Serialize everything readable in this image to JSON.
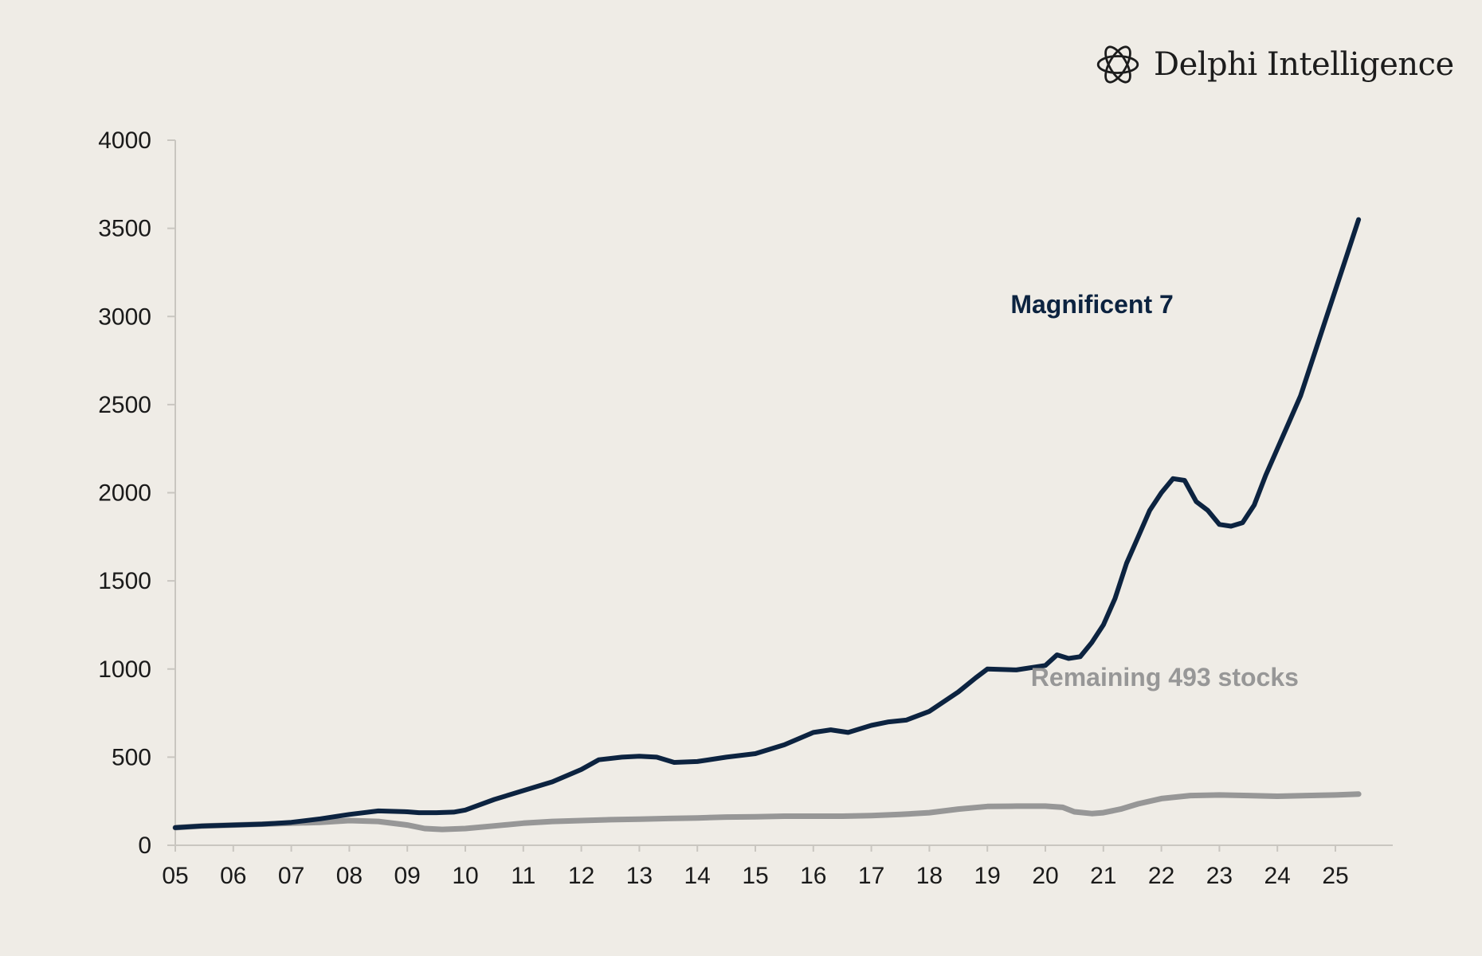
{
  "brand": {
    "name": "Delphi Intelligence",
    "logo_icon": "knot-logo-icon"
  },
  "chart_data": {
    "type": "line",
    "title": "",
    "xlabel": "",
    "ylabel": "",
    "xlim": [
      5,
      25.5
    ],
    "ylim": [
      0,
      4000
    ],
    "x_ticks": [
      "05",
      "06",
      "07",
      "08",
      "09",
      "10",
      "11",
      "12",
      "13",
      "14",
      "15",
      "16",
      "17",
      "18",
      "19",
      "20",
      "21",
      "22",
      "23",
      "24",
      "25"
    ],
    "y_ticks": [
      "4000",
      "3500",
      "3000",
      "2500",
      "2000",
      "1500",
      "1000",
      "500",
      "0"
    ],
    "grid": false,
    "legend": "inline labels",
    "series": [
      {
        "name": "Magnificent 7",
        "color": "#0c2340",
        "x": [
          5.0,
          5.5,
          6.0,
          6.5,
          7.0,
          7.5,
          8.0,
          8.5,
          9.0,
          9.2,
          9.5,
          9.8,
          10.0,
          10.5,
          11.0,
          11.5,
          12.0,
          12.3,
          12.7,
          13.0,
          13.3,
          13.6,
          14.0,
          14.5,
          15.0,
          15.5,
          16.0,
          16.3,
          16.6,
          17.0,
          17.3,
          17.6,
          18.0,
          18.5,
          18.8,
          19.0,
          19.5,
          20.0,
          20.2,
          20.4,
          20.6,
          20.8,
          21.0,
          21.2,
          21.4,
          21.6,
          21.8,
          22.0,
          22.2,
          22.4,
          22.6,
          22.8,
          23.0,
          23.2,
          23.4,
          23.6,
          23.8,
          24.0,
          24.2,
          24.4,
          24.6,
          24.8,
          25.0,
          25.2,
          25.4
        ],
        "values": [
          100,
          110,
          115,
          120,
          130,
          150,
          175,
          195,
          190,
          185,
          185,
          188,
          200,
          260,
          310,
          360,
          430,
          485,
          500,
          505,
          500,
          470,
          475,
          500,
          520,
          570,
          640,
          655,
          640,
          680,
          700,
          710,
          760,
          870,
          950,
          1000,
          995,
          1020,
          1080,
          1060,
          1070,
          1150,
          1250,
          1400,
          1600,
          1750,
          1900,
          2000,
          2080,
          2070,
          1950,
          1900,
          1820,
          1810,
          1830,
          1930,
          2100,
          2250,
          2400,
          2550,
          2750,
          2950,
          3150,
          3350,
          3550
        ]
      },
      {
        "name": "Remaining 493 stocks",
        "color": "#979797",
        "x": [
          5.0,
          5.5,
          6.0,
          6.5,
          7.0,
          7.5,
          8.0,
          8.5,
          9.0,
          9.3,
          9.6,
          10.0,
          10.5,
          11.0,
          11.5,
          12.0,
          12.5,
          13.0,
          13.5,
          14.0,
          14.5,
          15.0,
          15.5,
          16.0,
          16.5,
          17.0,
          17.5,
          18.0,
          18.5,
          19.0,
          19.5,
          20.0,
          20.3,
          20.5,
          20.8,
          21.0,
          21.3,
          21.6,
          22.0,
          22.5,
          23.0,
          23.5,
          24.0,
          24.5,
          25.0,
          25.4
        ],
        "values": [
          100,
          110,
          115,
          120,
          125,
          130,
          140,
          135,
          115,
          95,
          90,
          95,
          110,
          125,
          135,
          140,
          145,
          148,
          152,
          155,
          160,
          162,
          165,
          165,
          165,
          168,
          175,
          185,
          205,
          220,
          222,
          222,
          215,
          190,
          180,
          185,
          205,
          235,
          265,
          282,
          285,
          282,
          278,
          282,
          285,
          290
        ]
      }
    ],
    "annotations": [
      {
        "text": "Magnificent 7",
        "x": 19.4,
        "y": 3020,
        "series": 0
      },
      {
        "text": "Remaining 493 stocks",
        "x": 19.75,
        "y": 905,
        "series": 1
      }
    ]
  }
}
